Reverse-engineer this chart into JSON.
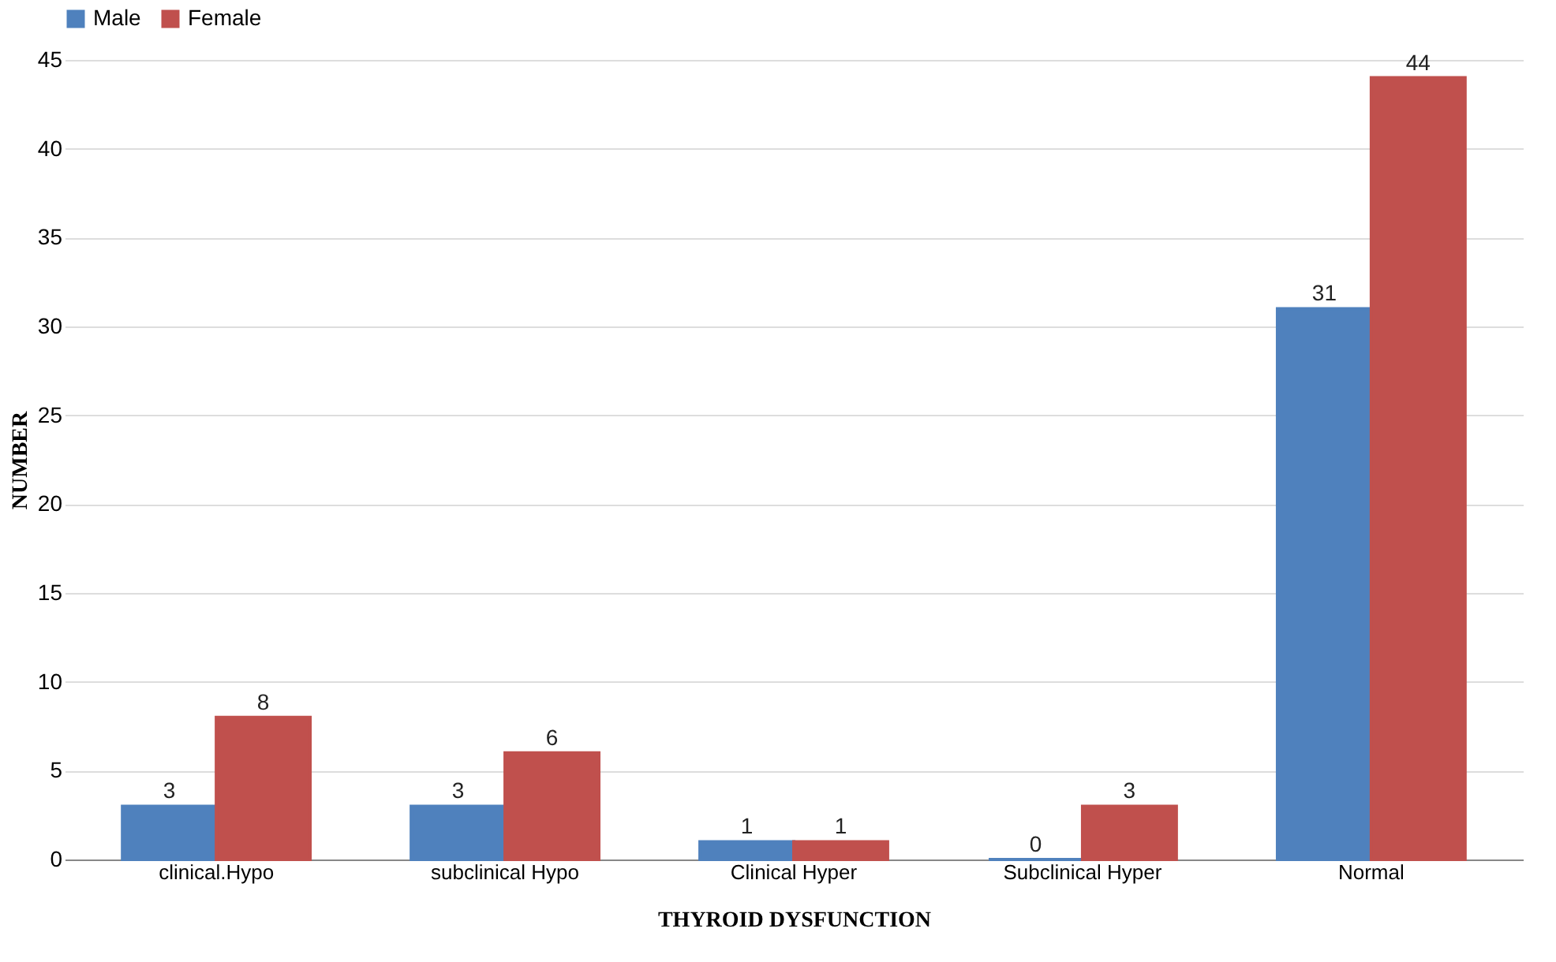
{
  "chart_data": {
    "type": "bar",
    "xlabel": "THYROID DYSFUNCTION",
    "ylabel": "NUMBER",
    "categories": [
      "clinical.Hypo",
      "subclinical Hypo",
      "Clinical Hyper",
      "Subclinical Hyper",
      "Normal"
    ],
    "series": [
      {
        "name": "Male",
        "color": "#4f81bd",
        "values": [
          3,
          3,
          1,
          0,
          31
        ]
      },
      {
        "name": "Female",
        "color": "#c0504d",
        "values": [
          8,
          6,
          1,
          3,
          44
        ]
      }
    ],
    "ylim": [
      0,
      45
    ],
    "yticks": [
      0,
      5,
      10,
      15,
      20,
      25,
      30,
      35,
      40,
      45
    ],
    "grid": "y",
    "legend": "top",
    "data_labels": true
  }
}
